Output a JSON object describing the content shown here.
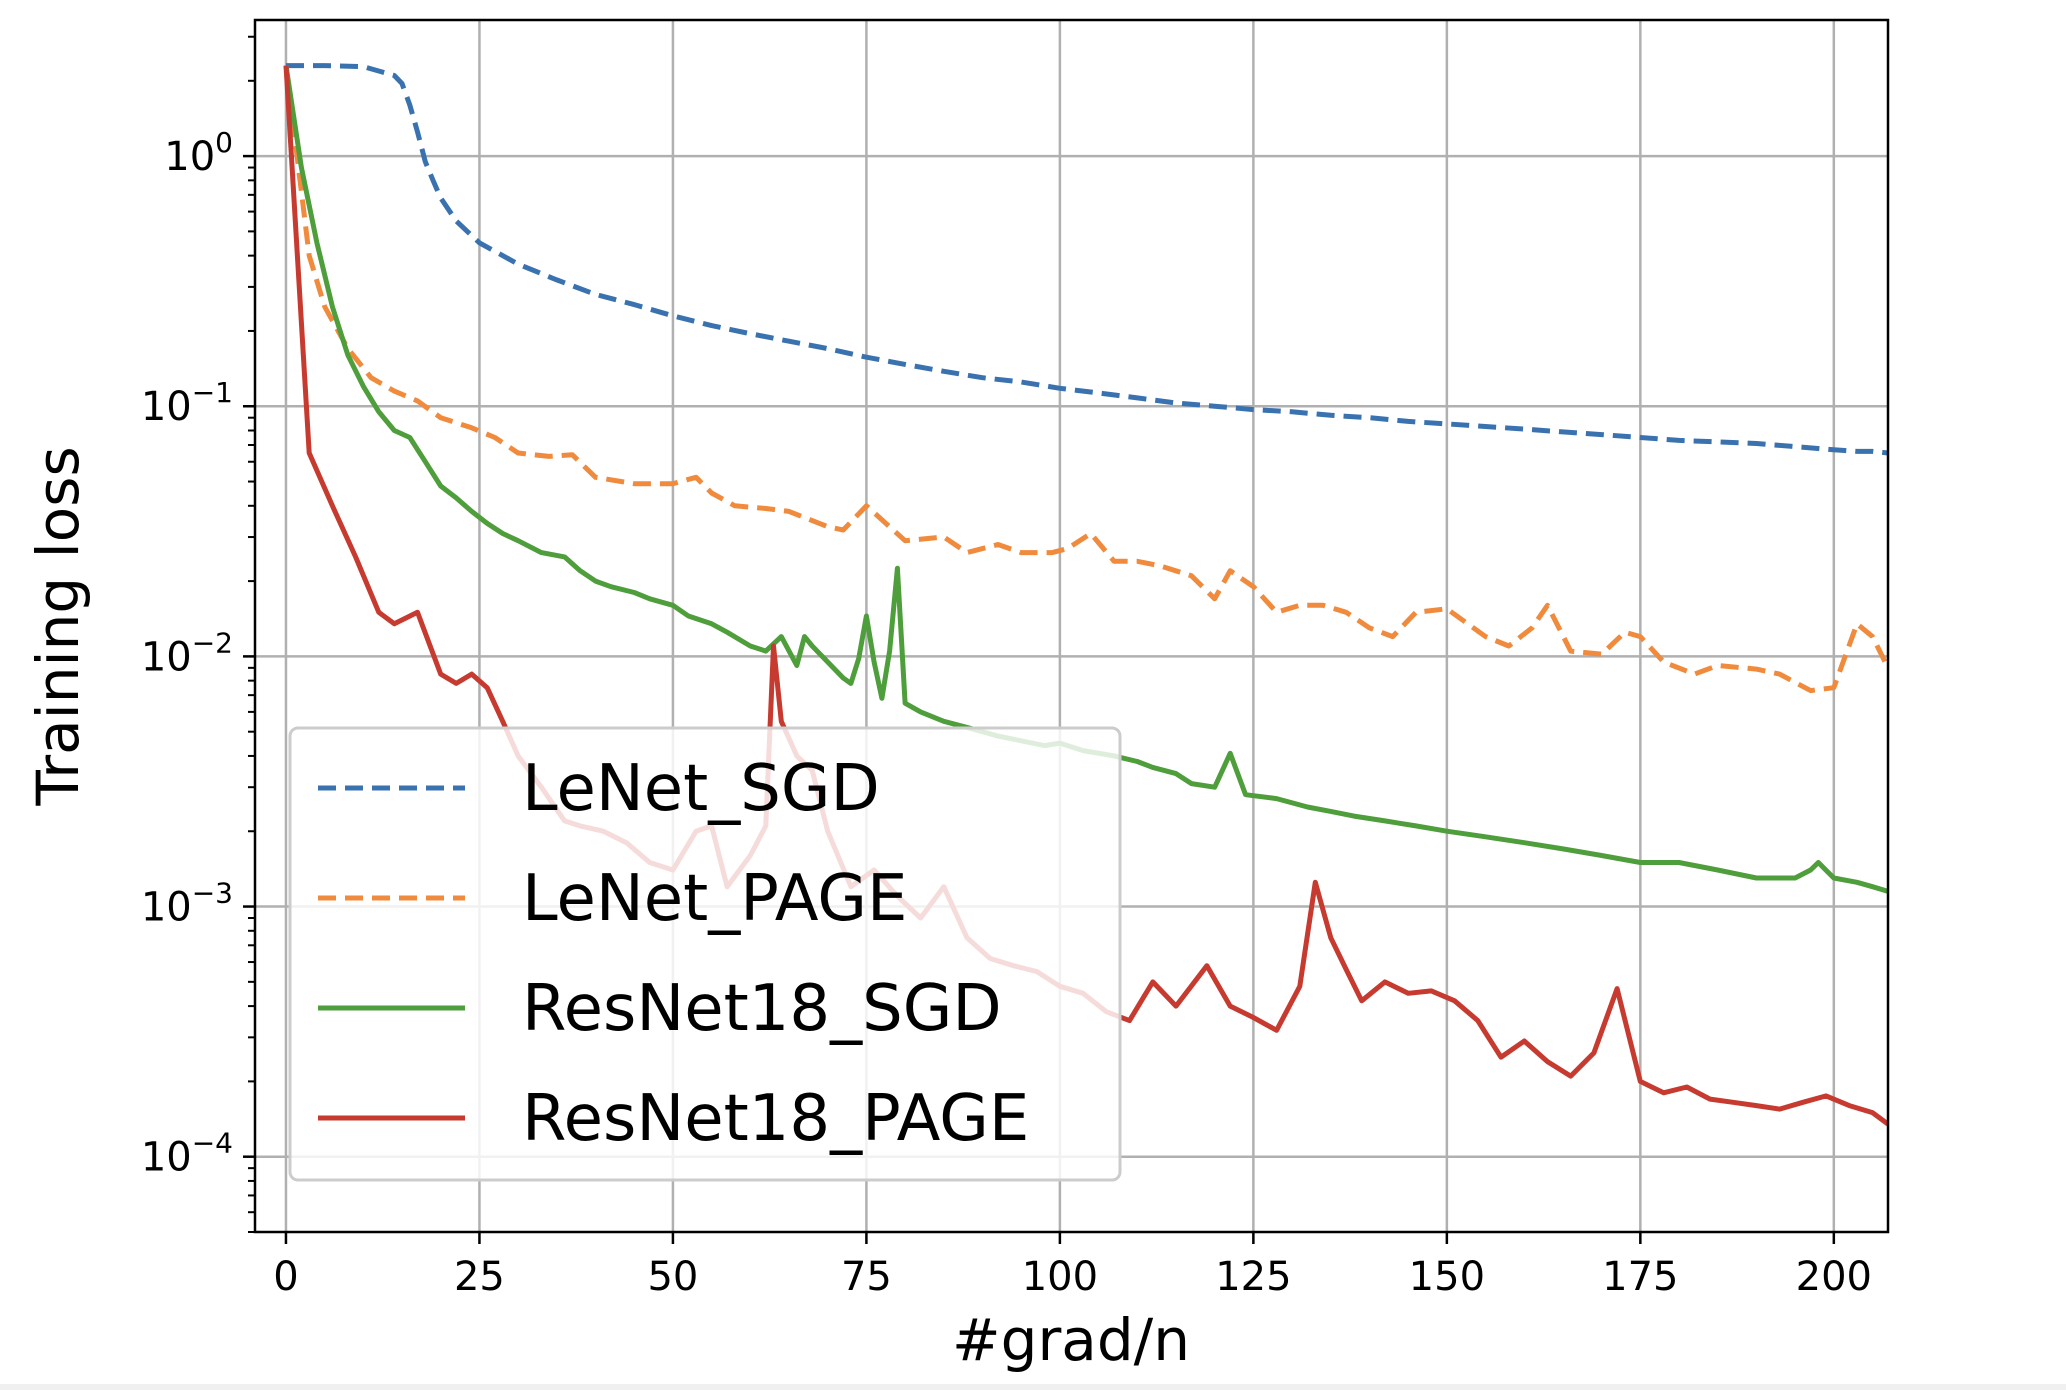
{
  "chart_data": {
    "type": "line",
    "xlabel": "#grad/n",
    "ylabel": "Training loss",
    "yscale": "log",
    "xlim": [
      -4,
      207
    ],
    "ylim": [
      5e-05,
      3.5
    ],
    "xticks": [
      0,
      25,
      50,
      75,
      100,
      125,
      150,
      175,
      200
    ],
    "yticks": [
      {
        "value": 1,
        "base": "10",
        "exp": "0"
      },
      {
        "value": 0.1,
        "base": "10",
        "exp": "−1"
      },
      {
        "value": 0.01,
        "base": "10",
        "exp": "−2"
      },
      {
        "value": 0.001,
        "base": "10",
        "exp": "−3"
      },
      {
        "value": 0.0001,
        "base": "10",
        "exp": "−4"
      }
    ],
    "grid": true,
    "legend_position": "lower-left",
    "series": [
      {
        "name": "LeNet_SGD",
        "color": "#3a72b0",
        "dash": true,
        "x": [
          0,
          5,
          10,
          14,
          15,
          16,
          17,
          18,
          19,
          20,
          22,
          25,
          30,
          35,
          40,
          45,
          50,
          55,
          60,
          65,
          70,
          75,
          80,
          85,
          90,
          95,
          100,
          105,
          110,
          115,
          120,
          125,
          130,
          135,
          140,
          145,
          150,
          155,
          160,
          165,
          170,
          175,
          180,
          185,
          190,
          195,
          200,
          203,
          205,
          207
        ],
        "y": [
          2.3,
          2.3,
          2.28,
          2.1,
          1.95,
          1.6,
          1.25,
          0.95,
          0.8,
          0.68,
          0.55,
          0.45,
          0.37,
          0.32,
          0.28,
          0.255,
          0.23,
          0.21,
          0.195,
          0.182,
          0.17,
          0.157,
          0.147,
          0.138,
          0.13,
          0.125,
          0.118,
          0.113,
          0.108,
          0.103,
          0.1,
          0.097,
          0.095,
          0.092,
          0.09,
          0.087,
          0.085,
          0.083,
          0.081,
          0.079,
          0.077,
          0.075,
          0.073,
          0.072,
          0.071,
          0.069,
          0.067,
          0.066,
          0.066,
          0.065
        ]
      },
      {
        "name": "LeNet_PAGE",
        "color": "#f08a3c",
        "dash": true,
        "x": [
          0,
          3,
          5,
          8,
          11,
          14,
          17,
          20,
          24,
          27,
          30,
          34,
          37,
          40,
          45,
          50,
          53,
          55,
          58,
          62,
          65,
          70,
          72,
          75,
          78,
          80,
          85,
          88,
          92,
          95,
          99,
          101,
          104,
          107,
          110,
          113,
          117,
          120,
          122,
          125,
          128,
          131,
          134,
          137,
          140,
          143,
          146,
          150,
          155,
          158,
          161,
          163,
          166,
          170,
          173,
          175,
          178,
          182,
          185,
          190,
          193,
          197,
          200,
          203,
          205,
          207
        ],
        "y": [
          2.3,
          0.4,
          0.25,
          0.17,
          0.13,
          0.115,
          0.105,
          0.09,
          0.082,
          0.075,
          0.065,
          0.063,
          0.064,
          0.052,
          0.049,
          0.049,
          0.052,
          0.045,
          0.04,
          0.039,
          0.038,
          0.033,
          0.032,
          0.04,
          0.033,
          0.029,
          0.03,
          0.026,
          0.028,
          0.026,
          0.026,
          0.027,
          0.031,
          0.024,
          0.024,
          0.023,
          0.021,
          0.017,
          0.022,
          0.019,
          0.015,
          0.016,
          0.016,
          0.015,
          0.013,
          0.012,
          0.015,
          0.0155,
          0.012,
          0.011,
          0.013,
          0.016,
          0.0105,
          0.0102,
          0.0125,
          0.012,
          0.0095,
          0.0085,
          0.0092,
          0.0089,
          0.0085,
          0.0073,
          0.0075,
          0.0135,
          0.012,
          0.009
        ]
      },
      {
        "name": "ResNet18_SGD",
        "color": "#4f9e3c",
        "dash": false,
        "x": [
          0,
          2,
          4,
          6,
          8,
          10,
          12,
          14,
          16,
          18,
          20,
          22,
          24,
          26,
          28,
          30,
          33,
          36,
          38,
          40,
          42,
          45,
          47,
          50,
          52,
          55,
          57,
          60,
          62,
          64,
          66,
          67,
          68,
          70,
          72,
          73,
          74,
          75,
          76,
          77,
          78,
          79,
          80,
          82,
          85,
          88,
          90,
          92,
          95,
          98,
          100,
          103,
          107,
          110,
          112,
          115,
          117,
          120,
          122,
          124,
          128,
          132,
          135,
          138,
          142,
          146,
          150,
          155,
          160,
          165,
          170,
          175,
          180,
          185,
          190,
          195,
          197,
          198,
          200,
          203,
          205,
          207
        ],
        "y": [
          2.3,
          0.9,
          0.45,
          0.25,
          0.16,
          0.12,
          0.095,
          0.08,
          0.075,
          0.06,
          0.048,
          0.043,
          0.038,
          0.034,
          0.031,
          0.029,
          0.026,
          0.025,
          0.022,
          0.02,
          0.019,
          0.018,
          0.017,
          0.016,
          0.0145,
          0.0135,
          0.0125,
          0.011,
          0.0105,
          0.012,
          0.0092,
          0.012,
          0.011,
          0.0095,
          0.0082,
          0.0078,
          0.0098,
          0.0145,
          0.0095,
          0.0068,
          0.0105,
          0.0225,
          0.0065,
          0.006,
          0.0055,
          0.0052,
          0.005,
          0.0048,
          0.0046,
          0.0044,
          0.0045,
          0.0042,
          0.004,
          0.0038,
          0.0036,
          0.0034,
          0.0031,
          0.003,
          0.0041,
          0.0028,
          0.0027,
          0.0025,
          0.0024,
          0.0023,
          0.0022,
          0.0021,
          0.002,
          0.0019,
          0.0018,
          0.0017,
          0.0016,
          0.0015,
          0.0015,
          0.0014,
          0.0013,
          0.0013,
          0.0014,
          0.0015,
          0.0013,
          0.00125,
          0.0012,
          0.00115
        ]
      },
      {
        "name": "ResNet18_PAGE",
        "color": "#c63a2f",
        "dash": false,
        "x": [
          0,
          3,
          6,
          9,
          12,
          14,
          17,
          20,
          22,
          24,
          26,
          28,
          30,
          33,
          36,
          38,
          41,
          44,
          47,
          50,
          53,
          55,
          57,
          60,
          62,
          63,
          64,
          66,
          68,
          70,
          73,
          76,
          79,
          82,
          85,
          88,
          91,
          94,
          97,
          100,
          103,
          106,
          109,
          112,
          115,
          119,
          122,
          125,
          128,
          131,
          133,
          135,
          137,
          139,
          142,
          145,
          148,
          151,
          154,
          157,
          160,
          163,
          166,
          169,
          172,
          175,
          178,
          181,
          184,
          187,
          190,
          193,
          196,
          199,
          202,
          205,
          207
        ],
        "y": [
          2.3,
          0.065,
          0.04,
          0.025,
          0.015,
          0.0135,
          0.015,
          0.0085,
          0.0078,
          0.0085,
          0.0075,
          0.0055,
          0.004,
          0.003,
          0.0022,
          0.0021,
          0.002,
          0.0018,
          0.0015,
          0.0014,
          0.002,
          0.0021,
          0.0012,
          0.0016,
          0.0021,
          0.011,
          0.0055,
          0.004,
          0.0035,
          0.002,
          0.0012,
          0.0014,
          0.0011,
          0.0009,
          0.0012,
          0.00075,
          0.00062,
          0.00058,
          0.00055,
          0.00048,
          0.00045,
          0.00038,
          0.00035,
          0.0005,
          0.0004,
          0.00058,
          0.0004,
          0.00036,
          0.00032,
          0.00048,
          0.00125,
          0.00075,
          0.00056,
          0.00042,
          0.0005,
          0.00045,
          0.00046,
          0.00042,
          0.00035,
          0.00025,
          0.00029,
          0.00024,
          0.00021,
          0.00026,
          0.00047,
          0.0002,
          0.00018,
          0.00019,
          0.00017,
          0.000165,
          0.00016,
          0.000155,
          0.000165,
          0.000175,
          0.00016,
          0.00015,
          0.000135
        ]
      }
    ]
  }
}
